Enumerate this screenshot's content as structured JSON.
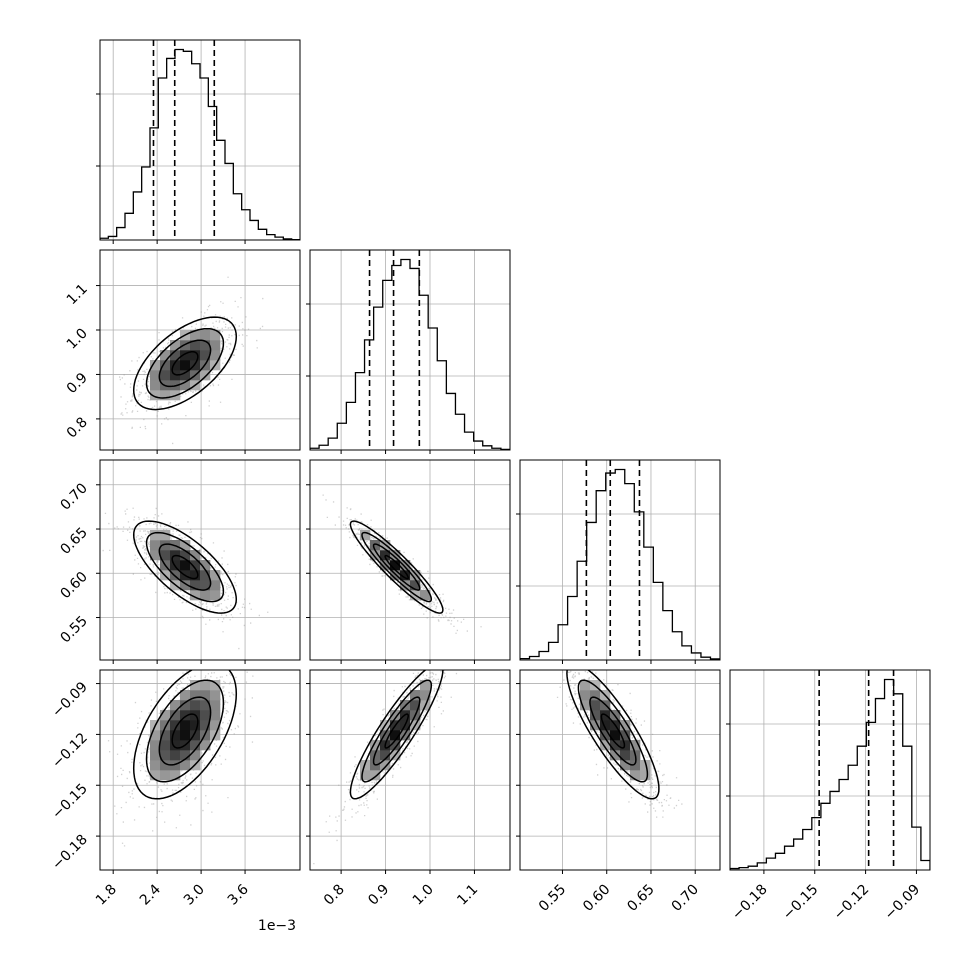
{
  "figure": {
    "offset_text": "1e−3"
  },
  "chart_data": {
    "type": "corner",
    "params": [
      {
        "ticks": [
          0.0018,
          0.0024,
          0.003,
          0.0036
        ],
        "tick_labels": [
          "1.8",
          "2.4",
          "3.0",
          "3.6"
        ],
        "range": [
          0.00162,
          0.00435
        ],
        "quantiles": [
          0.00235,
          0.00264,
          0.00318
        ],
        "hist": [
          0.5,
          1.0,
          3.5,
          7.5,
          13.5,
          20.5,
          31.5,
          45.5,
          51.0,
          53.5,
          53.0,
          49.5,
          45.5,
          37.5,
          28.0,
          21.5,
          13.0,
          8.5,
          5.5,
          3.0,
          1.5,
          0.8,
          0.3,
          0.1
        ]
      },
      {
        "ticks": [
          0.8,
          0.9,
          1.0,
          1.1
        ],
        "tick_labels": [
          "0.8",
          "0.9",
          "1.0",
          "1.1"
        ],
        "range": [
          0.73,
          1.18
        ],
        "quantiles": [
          0.864,
          0.918,
          0.976
        ],
        "hist": [
          0.3,
          0.8,
          2.0,
          4.5,
          8.0,
          13.0,
          18.5,
          24.0,
          28.5,
          31.0,
          32.0,
          30.5,
          26.0,
          20.5,
          15.0,
          9.5,
          6.0,
          3.0,
          1.5,
          0.7,
          0.3,
          0.1
        ]
      },
      {
        "ticks": [
          0.55,
          0.6,
          0.65,
          0.7
        ],
        "tick_labels": [
          "0.55",
          "0.60",
          "0.65",
          "0.70"
        ],
        "range": [
          0.502,
          0.728
        ],
        "quantiles": [
          0.577,
          0.604,
          0.637
        ],
        "hist": [
          0.2,
          0.5,
          1.2,
          2.5,
          5.0,
          9.0,
          14.0,
          19.5,
          24.0,
          26.5,
          27.0,
          25.0,
          21.0,
          16.0,
          11.0,
          7.0,
          4.0,
          2.0,
          1.0,
          0.4,
          0.15
        ]
      },
      {
        "ticks": [
          -0.18,
          -0.15,
          -0.12,
          -0.09
        ],
        "tick_labels": [
          "−0.18",
          "−0.15",
          "−0.12",
          "−0.09"
        ],
        "range": [
          -0.2,
          -0.082
        ],
        "quantiles": [
          -0.1474,
          -0.1182,
          -0.1035
        ],
        "hist": [
          0.3,
          0.5,
          0.8,
          1.5,
          2.5,
          3.5,
          5.0,
          6.5,
          8.5,
          11.0,
          14.0,
          16.5,
          19.0,
          22.0,
          26.0,
          31.0,
          36.0,
          40.0,
          37.0,
          26.0,
          9.0,
          2.0
        ]
      }
    ],
    "pairs": [
      {
        "x": 0,
        "y": 1,
        "mean": [
          0.00278,
          0.925
        ],
        "sd": [
          0.00035,
          0.052
        ],
        "rho": 0.58
      },
      {
        "x": 0,
        "y": 2,
        "mean": [
          0.00278,
          0.607
        ],
        "sd": [
          0.00035,
          0.026
        ],
        "rho": -0.7
      },
      {
        "x": 1,
        "y": 2,
        "mean": [
          0.925,
          0.607
        ],
        "sd": [
          0.052,
          0.026
        ],
        "rho": -0.93
      },
      {
        "x": 0,
        "y": 3,
        "mean": [
          0.00278,
          -0.118
        ],
        "sd": [
          0.00035,
          0.02
        ],
        "rho": 0.55
      },
      {
        "x": 1,
        "y": 3,
        "mean": [
          0.925,
          -0.118
        ],
        "sd": [
          0.052,
          0.02
        ],
        "rho": 0.9
      },
      {
        "x": 2,
        "y": 3,
        "mean": [
          0.607,
          -0.118
        ],
        "sd": [
          0.026,
          0.02
        ],
        "rho": -0.85
      }
    ],
    "grid": true,
    "contour_levels_sigma": [
      0.5,
      1.0,
      1.5,
      2.0
    ]
  }
}
